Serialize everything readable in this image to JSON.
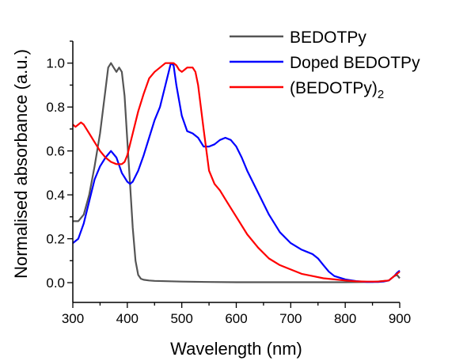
{
  "chart_data": {
    "type": "line",
    "xlabel": "Wavelength (nm)",
    "ylabel": "Normalised absorbance (a.u.)",
    "xlim": [
      300,
      900
    ],
    "ylim": [
      -0.09,
      1.1
    ],
    "xticks": [
      300,
      400,
      500,
      600,
      700,
      800,
      900
    ],
    "yticks": [
      0.0,
      0.2,
      0.4,
      0.6,
      0.8,
      1.0
    ],
    "ytick_labels": [
      "0.0",
      "0.2",
      "0.4",
      "0.6",
      "0.8",
      "1.0"
    ],
    "grid": false,
    "legend_position": "top-right",
    "series": [
      {
        "name": "BEDOTPy",
        "legend_base": "BEDOTPy",
        "legend_sub": "",
        "color": "#555555",
        "x": [
          300,
          310,
          320,
          330,
          340,
          350,
          360,
          365,
          370,
          375,
          380,
          385,
          390,
          395,
          400,
          405,
          410,
          415,
          420,
          425,
          430,
          440,
          450,
          500,
          550,
          600,
          650,
          700,
          750,
          800,
          850,
          880,
          890,
          895,
          900
        ],
        "y": [
          0.28,
          0.28,
          0.31,
          0.4,
          0.53,
          0.68,
          0.88,
          0.98,
          1.0,
          0.98,
          0.96,
          0.98,
          0.96,
          0.85,
          0.65,
          0.45,
          0.25,
          0.1,
          0.035,
          0.018,
          0.013,
          0.01,
          0.008,
          0.005,
          0.003,
          0.002,
          0.002,
          0.002,
          0.002,
          0.002,
          0.003,
          0.01,
          0.03,
          0.035,
          0.02
        ]
      },
      {
        "name": "Doped BEDOTPy",
        "legend_base": "Doped BEDOTPy",
        "legend_sub": "",
        "color": "#0000ff",
        "x": [
          300,
          310,
          320,
          330,
          340,
          350,
          360,
          370,
          380,
          390,
          400,
          405,
          410,
          420,
          430,
          440,
          450,
          460,
          470,
          480,
          485,
          490,
          500,
          510,
          520,
          530,
          540,
          550,
          560,
          570,
          580,
          590,
          600,
          610,
          620,
          640,
          660,
          680,
          700,
          720,
          730,
          740,
          750,
          760,
          770,
          780,
          800,
          820,
          840,
          860,
          870,
          880,
          890,
          895,
          900
        ],
        "y": [
          0.18,
          0.2,
          0.27,
          0.37,
          0.47,
          0.53,
          0.57,
          0.6,
          0.57,
          0.5,
          0.46,
          0.45,
          0.46,
          0.51,
          0.58,
          0.66,
          0.74,
          0.8,
          0.9,
          1.0,
          0.99,
          0.9,
          0.76,
          0.69,
          0.68,
          0.66,
          0.62,
          0.62,
          0.63,
          0.65,
          0.66,
          0.65,
          0.62,
          0.57,
          0.51,
          0.41,
          0.31,
          0.23,
          0.18,
          0.15,
          0.14,
          0.13,
          0.11,
          0.08,
          0.05,
          0.03,
          0.015,
          0.007,
          0.003,
          0.003,
          0.005,
          0.01,
          0.03,
          0.045,
          0.055
        ]
      },
      {
        "name": "(BEDOTPy)2",
        "legend_base": "(BEDOTPy)",
        "legend_sub": "2",
        "color": "#ff0000",
        "x": [
          300,
          305,
          310,
          315,
          320,
          330,
          340,
          350,
          360,
          370,
          380,
          385,
          390,
          395,
          400,
          410,
          420,
          430,
          440,
          450,
          460,
          470,
          480,
          485,
          490,
          495,
          500,
          505,
          510,
          515,
          520,
          525,
          530,
          540,
          550,
          560,
          570,
          580,
          590,
          600,
          620,
          640,
          660,
          680,
          700,
          720,
          740,
          760,
          780,
          800,
          820,
          840,
          860,
          880,
          890,
          900
        ],
        "y": [
          0.72,
          0.71,
          0.72,
          0.73,
          0.72,
          0.68,
          0.64,
          0.6,
          0.57,
          0.55,
          0.54,
          0.54,
          0.54,
          0.55,
          0.58,
          0.68,
          0.78,
          0.86,
          0.93,
          0.96,
          0.98,
          1.0,
          1.0,
          1.0,
          0.99,
          0.97,
          0.96,
          0.97,
          0.98,
          0.98,
          0.98,
          0.96,
          0.9,
          0.7,
          0.51,
          0.45,
          0.42,
          0.38,
          0.34,
          0.3,
          0.22,
          0.16,
          0.11,
          0.08,
          0.06,
          0.04,
          0.03,
          0.02,
          0.015,
          0.01,
          0.006,
          0.005,
          0.005,
          0.01,
          0.03,
          0.05
        ]
      }
    ]
  }
}
